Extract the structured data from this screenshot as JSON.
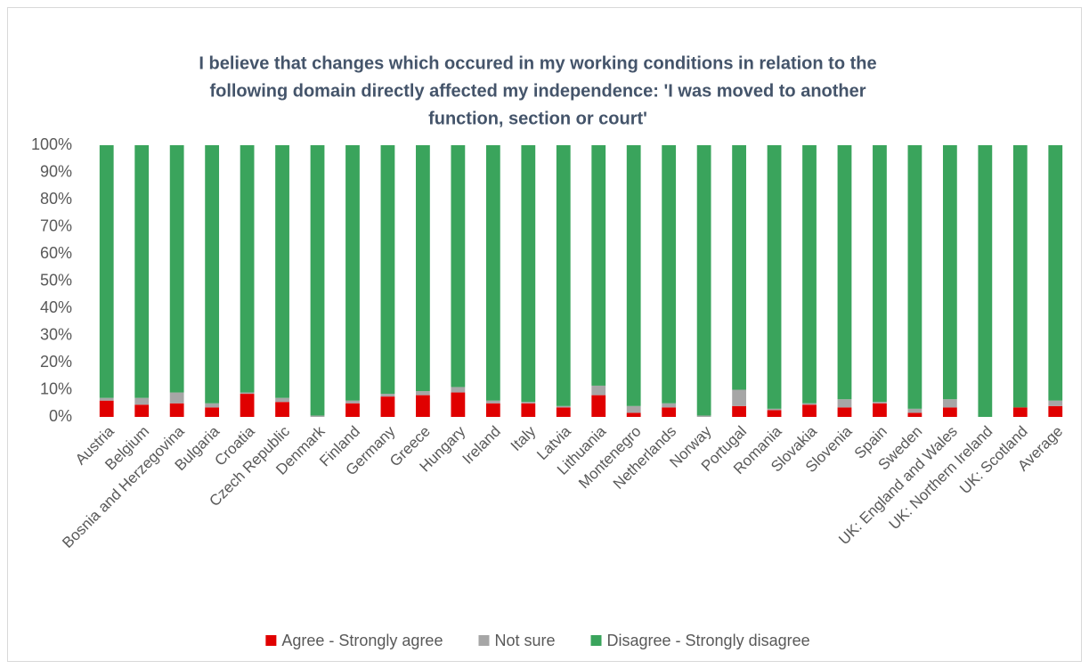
{
  "chart_data": {
    "type": "stacked_bar",
    "title": [
      "I believe that changes which occured in my working conditions in relation to the",
      "following domain directly affected my independence: 'I was moved to another",
      "function, section or court'"
    ],
    "categories": [
      "Austria",
      "Belgium",
      "Bosnia and Herzegovina",
      "Bulgaria",
      "Croatia",
      "Czech Republic",
      "Denmark",
      "Finland",
      "Germany",
      "Greece",
      "Hungary",
      "Ireland",
      "Italy",
      "Latvia",
      "Lithuania",
      "Montenegro",
      "Netherlands",
      "Norway",
      "Portugal",
      "Romania",
      "Slovakia",
      "Slovenia",
      "Spain",
      "Sweden",
      "UK: England and Wales",
      "UK: Northern Ireland",
      "UK: Scotland",
      "Average"
    ],
    "series": [
      {
        "name": "Agree - Strongly agree",
        "color": "#e00000",
        "values": [
          6,
          4.5,
          5,
          3.5,
          8.5,
          5.5,
          0,
          5,
          7.5,
          8,
          9,
          5,
          5,
          3.5,
          8,
          1.5,
          3.5,
          0,
          4,
          2.5,
          4.5,
          3.5,
          5,
          1.5,
          3.5,
          0,
          3.5,
          4
        ]
      },
      {
        "name": "Not sure",
        "color": "#a6a6a6",
        "values": [
          1,
          2.5,
          4,
          1.5,
          0.5,
          1.5,
          0.5,
          1,
          1,
          1.5,
          2,
          1,
          0.5,
          0.5,
          3.5,
          2.5,
          1.5,
          0.5,
          6,
          0.5,
          0.5,
          3,
          0.5,
          1.5,
          3,
          0,
          0,
          2
        ]
      },
      {
        "name": "Disagree - Strongly disagree",
        "color": "#3aa45c",
        "values": [
          93,
          93,
          91,
          95,
          91,
          93,
          99.5,
          94,
          91.5,
          90.5,
          89,
          94,
          94.5,
          96,
          88.5,
          96,
          95,
          99.5,
          90,
          97,
          95,
          93.5,
          94.5,
          97,
          93.5,
          100,
          96.5,
          94
        ]
      }
    ],
    "ylim": [
      0,
      100
    ],
    "yticks": [
      {
        "value": 0,
        "label": "0%"
      },
      {
        "value": 10,
        "label": "10%"
      },
      {
        "value": 20,
        "label": "20%"
      },
      {
        "value": 30,
        "label": "30%"
      },
      {
        "value": 40,
        "label": "40%"
      },
      {
        "value": 50,
        "label": "50%"
      },
      {
        "value": 60,
        "label": "60%"
      },
      {
        "value": 70,
        "label": "70%"
      },
      {
        "value": 80,
        "label": "80%"
      },
      {
        "value": 90,
        "label": "90%"
      },
      {
        "value": 100,
        "label": "100%"
      }
    ],
    "legend": "bottom"
  }
}
